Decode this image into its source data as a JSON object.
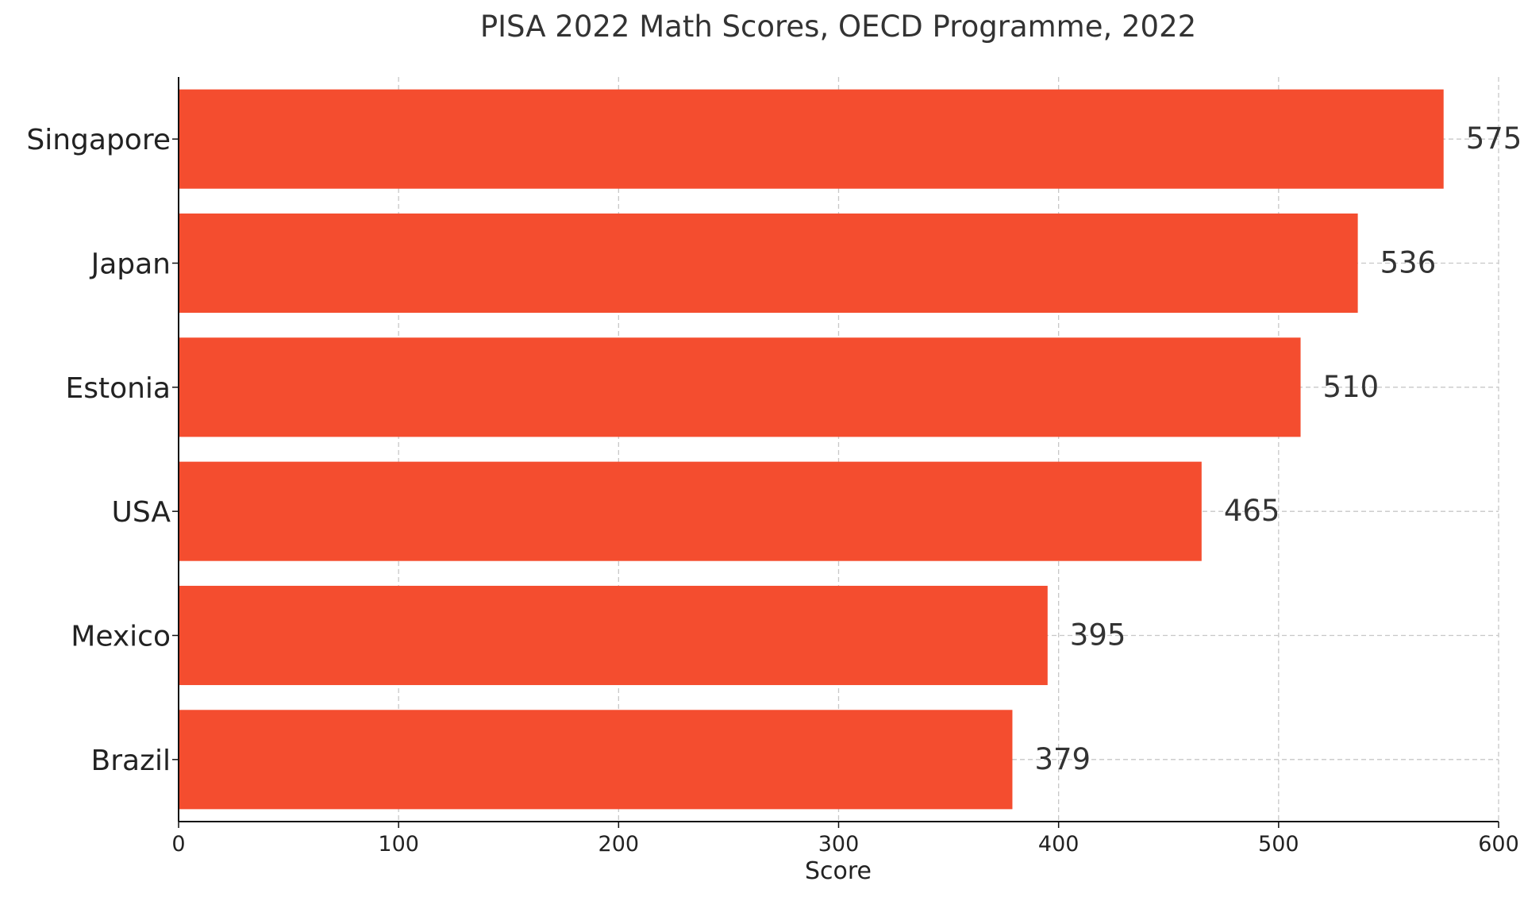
{
  "chart_data": {
    "type": "bar",
    "orientation": "horizontal",
    "title": "PISA 2022 Math Scores, OECD Programme, 2022",
    "xlabel": "Score",
    "ylabel": "",
    "categories": [
      "Singapore",
      "Japan",
      "Estonia",
      "USA",
      "Mexico",
      "Brazil"
    ],
    "values": [
      575,
      536,
      510,
      465,
      395,
      379
    ],
    "xlim": [
      0,
      600
    ],
    "xticks": [
      0,
      100,
      200,
      300,
      400,
      500,
      600
    ],
    "grid": true,
    "legend": "none",
    "bar_color": "#f44d2f"
  }
}
